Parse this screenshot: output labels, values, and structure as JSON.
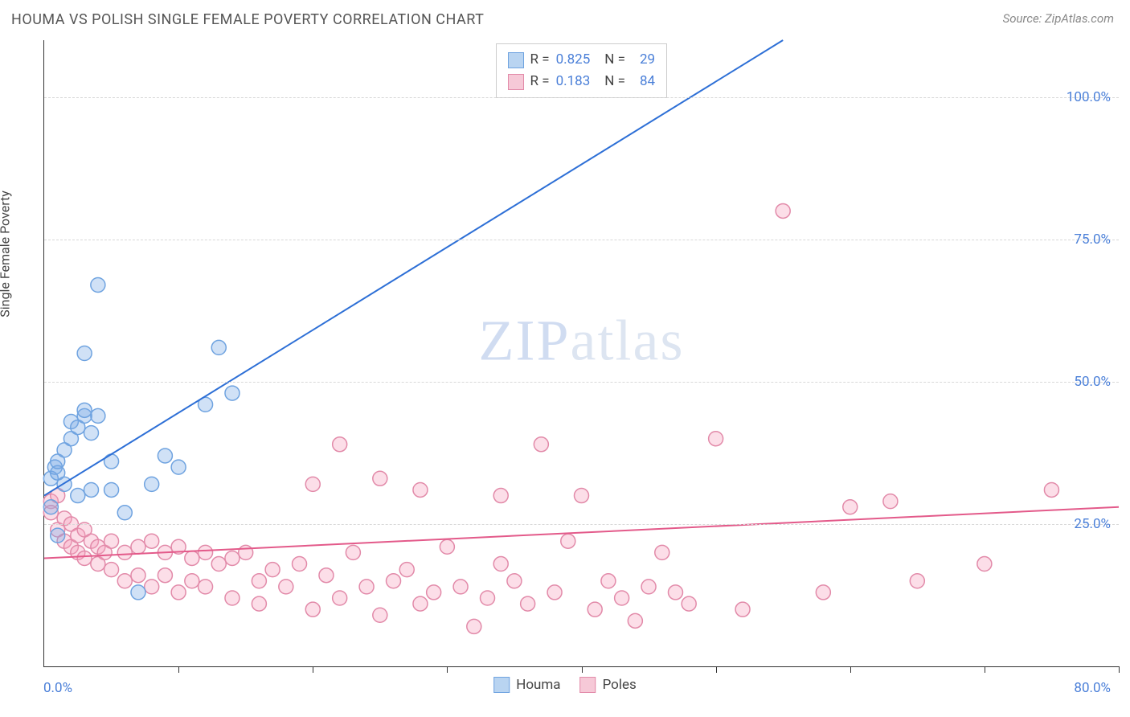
{
  "title": "HOUMA VS POLISH SINGLE FEMALE POVERTY CORRELATION CHART",
  "source": "Source: ZipAtlas.com",
  "ylabel": "Single Female Poverty",
  "watermark": {
    "part1": "ZIP",
    "part2": "atlas"
  },
  "chart": {
    "type": "scatter",
    "background_color": "#ffffff",
    "grid_color": "#d8d8d8",
    "grid_dash": "4,4",
    "axis_color": "#333333",
    "xlim": [
      0,
      80
    ],
    "ylim": [
      0,
      110
    ],
    "xtick_label_left": "0.0%",
    "xtick_label_right": "80.0%",
    "xticks": [
      0,
      10,
      20,
      30,
      40,
      50,
      60,
      70,
      80
    ],
    "yticks": [
      {
        "v": 25,
        "label": "25.0%"
      },
      {
        "v": 50,
        "label": "50.0%"
      },
      {
        "v": 75,
        "label": "75.0%"
      },
      {
        "v": 100,
        "label": "100.0%"
      }
    ],
    "label_color": "#4a7fd8",
    "label_fontsize": 17,
    "title_fontsize": 18,
    "marker_radius": 9,
    "marker_stroke_width": 1.5,
    "line_width": 2,
    "series": [
      {
        "name": "Houma",
        "fill": "rgba(120,170,230,0.35)",
        "stroke": "#6fa3e0",
        "swatch_fill": "#b9d4f1",
        "swatch_border": "#6fa3e0",
        "R": "0.825",
        "N": "29",
        "trend": {
          "x1": 0,
          "y1": 30,
          "x2": 55,
          "y2": 110,
          "color": "#2d6fd6"
        },
        "points": [
          [
            0.5,
            33
          ],
          [
            0.8,
            35
          ],
          [
            1,
            34
          ],
          [
            1,
            36
          ],
          [
            1.5,
            32
          ],
          [
            1.5,
            38
          ],
          [
            2,
            40
          ],
          [
            2,
            43
          ],
          [
            2.5,
            30
          ],
          [
            2.5,
            42
          ],
          [
            3,
            44
          ],
          [
            3,
            45
          ],
          [
            3,
            55
          ],
          [
            3.5,
            31
          ],
          [
            3.5,
            41
          ],
          [
            4,
            44
          ],
          [
            4,
            67
          ],
          [
            5,
            31
          ],
          [
            5,
            36
          ],
          [
            6,
            27
          ],
          [
            7,
            13
          ],
          [
            8,
            32
          ],
          [
            9,
            37
          ],
          [
            10,
            35
          ],
          [
            12,
            46
          ],
          [
            13,
            56
          ],
          [
            14,
            48
          ],
          [
            1,
            23
          ],
          [
            0.5,
            28
          ]
        ]
      },
      {
        "name": "Poles",
        "fill": "rgba(245,160,190,0.35)",
        "stroke": "#e28aa9",
        "swatch_fill": "#f6c9d7",
        "swatch_border": "#e28aa9",
        "R": "0.183",
        "N": "84",
        "trend": {
          "x1": 0,
          "y1": 19,
          "x2": 80,
          "y2": 28,
          "color": "#e35a8a"
        },
        "points": [
          [
            0.5,
            29
          ],
          [
            0.5,
            27
          ],
          [
            1,
            30
          ],
          [
            1,
            24
          ],
          [
            1.5,
            26
          ],
          [
            1.5,
            22
          ],
          [
            2,
            25
          ],
          [
            2,
            21
          ],
          [
            2.5,
            23
          ],
          [
            2.5,
            20
          ],
          [
            3,
            24
          ],
          [
            3,
            19
          ],
          [
            3.5,
            22
          ],
          [
            4,
            21
          ],
          [
            4,
            18
          ],
          [
            4.5,
            20
          ],
          [
            5,
            22
          ],
          [
            5,
            17
          ],
          [
            6,
            20
          ],
          [
            6,
            15
          ],
          [
            7,
            21
          ],
          [
            7,
            16
          ],
          [
            8,
            22
          ],
          [
            8,
            14
          ],
          [
            9,
            20
          ],
          [
            9,
            16
          ],
          [
            10,
            21
          ],
          [
            10,
            13
          ],
          [
            11,
            19
          ],
          [
            11,
            15
          ],
          [
            12,
            20
          ],
          [
            12,
            14
          ],
          [
            13,
            18
          ],
          [
            14,
            19
          ],
          [
            14,
            12
          ],
          [
            15,
            20
          ],
          [
            16,
            15
          ],
          [
            16,
            11
          ],
          [
            17,
            17
          ],
          [
            18,
            14
          ],
          [
            19,
            18
          ],
          [
            20,
            32
          ],
          [
            20,
            10
          ],
          [
            21,
            16
          ],
          [
            22,
            39
          ],
          [
            22,
            12
          ],
          [
            23,
            20
          ],
          [
            24,
            14
          ],
          [
            25,
            33
          ],
          [
            25,
            9
          ],
          [
            26,
            15
          ],
          [
            27,
            17
          ],
          [
            28,
            11
          ],
          [
            28,
            31
          ],
          [
            29,
            13
          ],
          [
            30,
            21
          ],
          [
            31,
            14
          ],
          [
            32,
            7
          ],
          [
            33,
            12
          ],
          [
            34,
            30
          ],
          [
            35,
            15
          ],
          [
            36,
            11
          ],
          [
            37,
            39
          ],
          [
            38,
            13
          ],
          [
            39,
            22
          ],
          [
            40,
            30
          ],
          [
            41,
            10
          ],
          [
            42,
            15
          ],
          [
            43,
            12
          ],
          [
            44,
            8
          ],
          [
            45,
            14
          ],
          [
            46,
            20
          ],
          [
            47,
            13
          ],
          [
            48,
            11
          ],
          [
            50,
            40
          ],
          [
            52,
            10
          ],
          [
            55,
            80
          ],
          [
            58,
            13
          ],
          [
            60,
            28
          ],
          [
            65,
            15
          ],
          [
            70,
            18
          ],
          [
            75,
            31
          ],
          [
            63,
            29
          ],
          [
            34,
            18
          ]
        ]
      }
    ],
    "bottom_legend": [
      {
        "label": "Houma",
        "swatch_fill": "#b9d4f1",
        "swatch_border": "#6fa3e0"
      },
      {
        "label": "Poles",
        "swatch_fill": "#f6c9d7",
        "swatch_border": "#e28aa9"
      }
    ]
  }
}
